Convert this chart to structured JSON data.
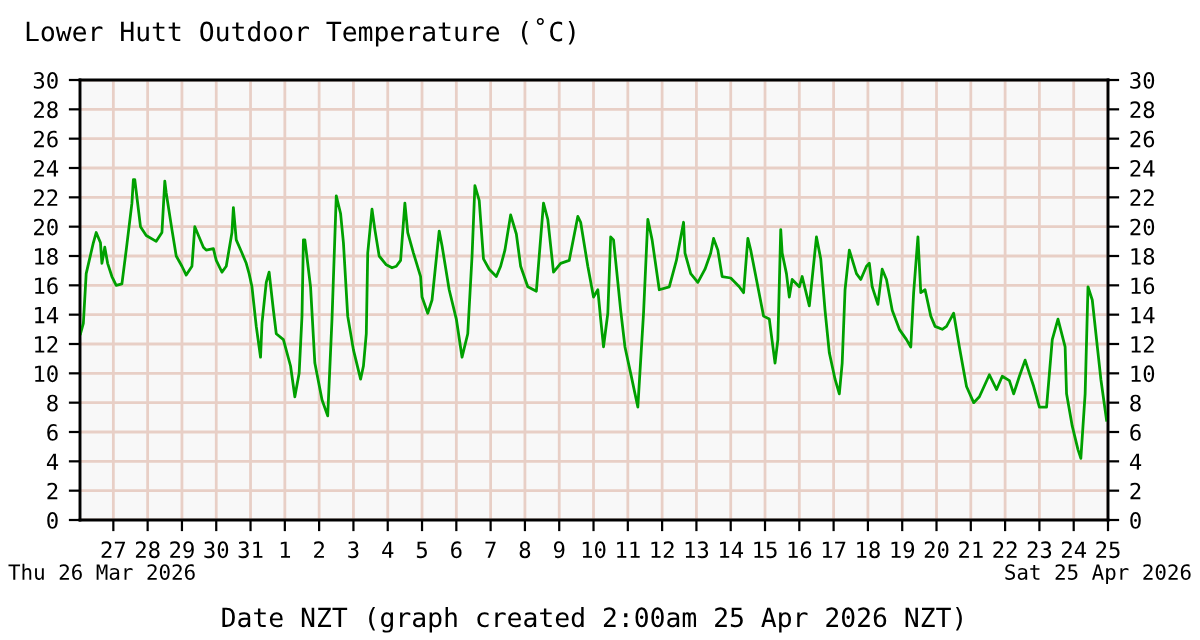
{
  "chart_data": {
    "type": "line",
    "title": "Lower Hutt Outdoor Temperature (˚C)",
    "xlabel": "Date NZT (graph created 2:00am 25 Apr 2026 NZT)",
    "annotations": [
      "Thu 26 Mar 2026",
      "Sat 25 Apr 2026"
    ],
    "x": [
      "2026-03-26T01:00",
      "2026-03-26T03:00",
      "2026-03-26T05:00",
      "2026-03-26T10:00",
      "2026-03-26T12:00",
      "2026-03-26T15:00",
      "2026-03-26T16:00",
      "2026-03-26T18:00",
      "2026-03-26T20:00",
      "2026-03-26T23:00",
      "2026-03-27T02:00",
      "2026-03-27T06:00",
      "2026-03-27T09:00",
      "2026-03-27T13:00",
      "2026-03-27T14:00",
      "2026-03-27T15:00",
      "2026-03-27T19:00",
      "2026-03-27T23:00",
      "2026-03-28T06:00",
      "2026-03-28T10:00",
      "2026-03-28T12:00",
      "2026-03-28T13:00",
      "2026-03-28T17:00",
      "2026-03-28T20:00",
      "2026-03-29T00:00",
      "2026-03-29T03:00",
      "2026-03-29T07:00",
      "2026-03-29T09:00",
      "2026-03-29T12:00",
      "2026-03-29T15:00",
      "2026-03-29T17:00",
      "2026-03-29T22:00",
      "2026-03-30T00:00",
      "2026-03-30T04:00",
      "2026-03-30T07:00",
      "2026-03-30T11:00",
      "2026-03-30T12:00",
      "2026-03-30T14:00",
      "2026-03-30T18:00",
      "2026-03-30T21:00",
      "2026-03-30T23:00",
      "2026-03-31T01:00",
      "2026-03-31T04:00",
      "2026-03-31T07:00",
      "2026-03-31T08:00",
      "2026-03-31T11:00",
      "2026-03-31T13:00",
      "2026-03-31T16:00",
      "2026-03-31T18:00",
      "2026-03-31T23:00",
      "2026-04-01T04:00",
      "2026-04-01T07:00",
      "2026-04-01T10:00",
      "2026-04-01T12:00",
      "2026-04-01T13:00",
      "2026-04-01T14:00",
      "2026-04-01T18:00",
      "2026-04-01T21:00",
      "2026-04-02T02:00",
      "2026-04-02T06:00",
      "2026-04-02T09:00",
      "2026-04-02T12:00",
      "2026-04-02T15:00",
      "2026-04-02T17:00",
      "2026-04-02T20:00",
      "2026-04-03T00:00",
      "2026-04-03T05:00",
      "2026-04-03T07:00",
      "2026-04-03T09:00",
      "2026-04-03T10:00",
      "2026-04-03T13:00",
      "2026-04-03T15:00",
      "2026-04-03T18:00",
      "2026-04-03T23:00",
      "2026-04-04T03:00",
      "2026-04-04T06:00",
      "2026-04-04T09:00",
      "2026-04-04T12:00",
      "2026-04-04T14:00",
      "2026-04-04T18:00",
      "2026-04-04T23:00",
      "2026-04-05T00:00",
      "2026-04-05T04:00",
      "2026-04-05T07:00",
      "2026-04-05T12:00",
      "2026-04-05T14:00",
      "2026-04-05T19:00",
      "2026-04-06T00:00",
      "2026-04-06T04:00",
      "2026-04-06T08:00",
      "2026-04-06T11:00",
      "2026-04-06T13:00",
      "2026-04-06T16:00",
      "2026-04-06T19:00",
      "2026-04-06T23:00",
      "2026-04-07T04:00",
      "2026-04-07T07:00",
      "2026-04-07T10:00",
      "2026-04-07T14:00",
      "2026-04-07T18:00",
      "2026-04-07T21:00",
      "2026-04-08T02:00",
      "2026-04-08T08:00",
      "2026-04-08T13:00",
      "2026-04-08T16:00",
      "2026-04-08T20:00",
      "2026-04-09T01:00",
      "2026-04-09T07:00",
      "2026-04-09T13:00",
      "2026-04-09T15:00",
      "2026-04-09T20:00",
      "2026-04-10T00:00",
      "2026-04-10T03:00",
      "2026-04-10T05:00",
      "2026-04-10T07:00",
      "2026-04-10T10:00",
      "2026-04-10T12:00",
      "2026-04-10T14:00",
      "2026-04-10T19:00",
      "2026-04-10T22:00",
      "2026-04-11T02:00",
      "2026-04-11T07:00",
      "2026-04-11T11:00",
      "2026-04-11T14:00",
      "2026-04-11T17:00",
      "2026-04-11T22:00",
      "2026-04-12T05:00",
      "2026-04-12T10:00",
      "2026-04-12T15:00",
      "2026-04-12T16:00",
      "2026-04-12T20:00",
      "2026-04-13T01:00",
      "2026-04-13T06:00",
      "2026-04-13T10:00",
      "2026-04-13T12:00",
      "2026-04-13T15:00",
      "2026-04-13T18:00",
      "2026-04-14T00:00",
      "2026-04-14T06:00",
      "2026-04-14T09:00",
      "2026-04-14T12:00",
      "2026-04-14T14:00",
      "2026-04-14T18:00",
      "2026-04-14T23:00",
      "2026-04-15T03:00",
      "2026-04-15T07:00",
      "2026-04-15T09:00",
      "2026-04-15T11:00",
      "2026-04-15T12:00",
      "2026-04-15T15:00",
      "2026-04-15T17:00",
      "2026-04-15T19:00",
      "2026-04-16T00:00",
      "2026-04-16T02:00",
      "2026-04-16T07:00",
      "2026-04-16T12:00",
      "2026-04-16T15:00",
      "2026-04-16T18:00",
      "2026-04-16T21:00",
      "2026-04-17T01:00",
      "2026-04-17T04:00",
      "2026-04-17T06:00",
      "2026-04-17T08:00",
      "2026-04-17T11:00",
      "2026-04-17T16:00",
      "2026-04-17T19:00",
      "2026-04-17T23:00",
      "2026-04-18T01:00",
      "2026-04-18T03:00",
      "2026-04-18T07:00",
      "2026-04-18T10:00",
      "2026-04-18T13:00",
      "2026-04-18T17:00",
      "2026-04-18T22:00",
      "2026-04-19T03:00",
      "2026-04-19T06:00",
      "2026-04-19T08:00",
      "2026-04-19T11:00",
      "2026-04-19T13:00",
      "2026-04-19T16:00",
      "2026-04-19T20:00",
      "2026-04-19T23:00",
      "2026-04-20T04:00",
      "2026-04-20T07:00",
      "2026-04-20T12:00",
      "2026-04-20T16:00",
      "2026-04-20T21:00",
      "2026-04-21T02:00",
      "2026-04-21T06:00",
      "2026-04-21T13:00",
      "2026-04-21T18:00",
      "2026-04-21T22:00",
      "2026-04-22T03:00",
      "2026-04-22T06:00",
      "2026-04-22T10:00",
      "2026-04-22T14:00",
      "2026-04-22T17:00",
      "2026-04-22T20:00",
      "2026-04-23T00:00",
      "2026-04-23T05:00",
      "2026-04-23T09:00",
      "2026-04-23T13:00",
      "2026-04-23T18:00",
      "2026-04-23T19:00",
      "2026-04-23T23:00",
      "2026-04-24T03:00",
      "2026-04-24T05:00",
      "2026-04-24T08:00",
      "2026-04-24T10:00",
      "2026-04-24T13:00",
      "2026-04-24T17:00",
      "2026-04-24T19:00",
      "2026-04-24T23:00"
    ],
    "series": [
      {
        "color": "#00a000",
        "values": [
          12.7,
          13.4,
          16.8,
          18.9,
          19.6,
          18.9,
          17.5,
          18.6,
          17.5,
          16.6,
          16.0,
          16.1,
          18.4,
          21.6,
          23.2,
          23.2,
          20.0,
          19.4,
          19.0,
          19.6,
          23.1,
          22.3,
          19.8,
          18.0,
          17.3,
          16.7,
          17.3,
          20.0,
          19.3,
          18.6,
          18.4,
          18.5,
          17.7,
          16.9,
          17.3,
          19.6,
          21.3,
          19.1,
          18.2,
          17.5,
          16.8,
          15.9,
          13.2,
          11.1,
          13.4,
          16.2,
          16.9,
          14.3,
          12.7,
          12.3,
          10.5,
          8.4,
          10.0,
          13.9,
          19.1,
          19.1,
          15.9,
          10.7,
          8.2,
          7.1,
          13.7,
          22.1,
          20.9,
          18.9,
          13.9,
          11.6,
          9.6,
          10.5,
          12.7,
          18.2,
          21.2,
          19.8,
          18.0,
          17.4,
          17.2,
          17.3,
          17.7,
          21.6,
          19.6,
          18.2,
          16.6,
          15.2,
          14.1,
          15.0,
          19.7,
          18.7,
          15.7,
          13.7,
          11.1,
          12.7,
          18.0,
          22.8,
          21.8,
          17.8,
          17.1,
          16.6,
          17.3,
          18.4,
          20.8,
          19.5,
          17.3,
          15.9,
          15.6,
          21.6,
          20.5,
          16.9,
          17.5,
          17.7,
          20.7,
          20.3,
          17.3,
          15.2,
          15.7,
          13.7,
          11.8,
          14.1,
          19.3,
          19.1,
          14.3,
          11.8,
          10.0,
          7.7,
          14.1,
          20.5,
          19.1,
          15.7,
          15.9,
          17.7,
          20.3,
          18.2,
          16.8,
          16.2,
          17.1,
          18.2,
          19.2,
          18.4,
          16.6,
          16.5,
          15.9,
          15.5,
          19.2,
          18.4,
          16.4,
          13.9,
          13.7,
          10.7,
          12.3,
          19.8,
          18.2,
          16.8,
          15.2,
          16.4,
          15.9,
          16.6,
          14.6,
          19.3,
          17.8,
          14.3,
          11.4,
          9.6,
          8.6,
          10.7,
          15.7,
          18.4,
          16.8,
          16.4,
          17.3,
          17.5,
          15.9,
          14.7,
          17.1,
          16.4,
          14.3,
          13.0,
          12.3,
          11.8,
          15.5,
          19.3,
          15.5,
          15.7,
          13.9,
          13.2,
          13.0,
          13.2,
          14.1,
          11.8,
          9.1,
          8.0,
          8.4,
          9.9,
          8.9,
          9.8,
          9.5,
          8.6,
          9.8,
          10.9,
          10.0,
          9.1,
          7.7,
          7.7,
          12.3,
          13.7,
          11.8,
          8.6,
          6.4,
          4.8,
          4.2,
          8.6,
          15.9,
          15.0,
          11.4,
          9.6,
          6.8
        ]
      }
    ],
    "xlim": [
      "2026-03-26T00:40",
      "2026-04-25T00:00"
    ],
    "xticks": [
      {
        "value": "2026-03-27",
        "label": "27"
      },
      {
        "value": "2026-03-28",
        "label": "28"
      },
      {
        "value": "2026-03-29",
        "label": "29"
      },
      {
        "value": "2026-03-30",
        "label": "30"
      },
      {
        "value": "2026-03-31",
        "label": "31"
      },
      {
        "value": "2026-04-01",
        "label": "1"
      },
      {
        "value": "2026-04-02",
        "label": "2"
      },
      {
        "value": "2026-04-03",
        "label": "3"
      },
      {
        "value": "2026-04-04",
        "label": "4"
      },
      {
        "value": "2026-04-05",
        "label": "5"
      },
      {
        "value": "2026-04-06",
        "label": "6"
      },
      {
        "value": "2026-04-07",
        "label": "7"
      },
      {
        "value": "2026-04-08",
        "label": "8"
      },
      {
        "value": "2026-04-09",
        "label": "9"
      },
      {
        "value": "2026-04-10",
        "label": "10"
      },
      {
        "value": "2026-04-11",
        "label": "11"
      },
      {
        "value": "2026-04-12",
        "label": "12"
      },
      {
        "value": "2026-04-13",
        "label": "13"
      },
      {
        "value": "2026-04-14",
        "label": "14"
      },
      {
        "value": "2026-04-15",
        "label": "15"
      },
      {
        "value": "2026-04-16",
        "label": "16"
      },
      {
        "value": "2026-04-17",
        "label": "17"
      },
      {
        "value": "2026-04-18",
        "label": "18"
      },
      {
        "value": "2026-04-19",
        "label": "19"
      },
      {
        "value": "2026-04-20",
        "label": "20"
      },
      {
        "value": "2026-04-21",
        "label": "21"
      },
      {
        "value": "2026-04-22",
        "label": "22"
      },
      {
        "value": "2026-04-23",
        "label": "23"
      },
      {
        "value": "2026-04-24",
        "label": "24"
      },
      {
        "value": "2026-04-25",
        "label": "25"
      }
    ],
    "ylim": [
      0,
      30
    ],
    "yticks": [
      0,
      2,
      4,
      6,
      8,
      10,
      12,
      14,
      16,
      18,
      20,
      22,
      24,
      26,
      28,
      30
    ],
    "y2lim": [
      0,
      30
    ],
    "y2ticks": [
      0,
      2,
      4,
      6,
      8,
      10,
      12,
      14,
      16,
      18,
      20,
      22,
      24,
      26,
      28,
      30
    ],
    "grid": true
  }
}
